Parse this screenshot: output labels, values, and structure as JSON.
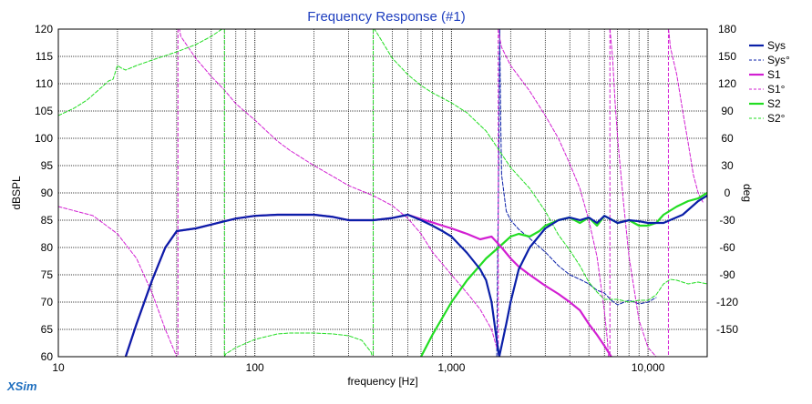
{
  "chart_data": {
    "type": "line",
    "title": "Frequency Response (#1)",
    "xlabel": "frequency [Hz]",
    "ylabel": "dBSPL",
    "y2label": "deg",
    "x_scale": "log",
    "xlim": [
      10,
      20000
    ],
    "ylim": [
      60,
      120
    ],
    "y2lim": [
      -180,
      180
    ],
    "x_ticks": [
      10,
      100,
      1000,
      10000
    ],
    "x_tick_labels": [
      "10",
      "100",
      "1,000",
      "10,000"
    ],
    "y_ticks": [
      60,
      65,
      70,
      75,
      80,
      85,
      90,
      95,
      100,
      105,
      110,
      115,
      120
    ],
    "y2_ticks": [
      -150,
      -120,
      -90,
      -60,
      -30,
      0,
      30,
      60,
      90,
      120,
      150,
      180
    ],
    "grid": true,
    "legend_position": "right",
    "brand": "XSim",
    "colors": {
      "sys": "#0a1fa8",
      "s1": "#d21fd2",
      "s2": "#22dd22",
      "title": "#1f3fbf",
      "brand": "#1f6fbf"
    },
    "series": [
      {
        "name": "Sys",
        "axis": "left",
        "style": "solid",
        "width": 2.2,
        "color": "#0a1fa8",
        "x": [
          22,
          25,
          30,
          35,
          40,
          50,
          60,
          70,
          80,
          100,
          130,
          150,
          200,
          250,
          300,
          400,
          500,
          600,
          700,
          800,
          900,
          1000,
          1200,
          1400,
          1500,
          1600,
          1700,
          1750,
          1800,
          1900,
          2000,
          2200,
          2500,
          3000,
          3500,
          4000,
          4500,
          5000,
          5500,
          6000,
          7000,
          8000,
          9000,
          10000,
          12000,
          15000,
          18000,
          20000
        ],
        "y": [
          60,
          66,
          74,
          80,
          83,
          83.5,
          84.2,
          84.8,
          85.3,
          85.8,
          86,
          86,
          86,
          85.6,
          85,
          85,
          85.4,
          86,
          85,
          84,
          83,
          82,
          79,
          76,
          74,
          70,
          63,
          60,
          62,
          66,
          70,
          76,
          80,
          83.5,
          85,
          85.5,
          85,
          85.5,
          84.5,
          85.8,
          84.5,
          85,
          84.8,
          84.5,
          84.5,
          86,
          88.5,
          89.5
        ]
      },
      {
        "name": "Sys°",
        "axis": "right",
        "style": "dashed",
        "width": 1,
        "color": "#0a1fa8",
        "x": [
          1700,
          1720,
          1745,
          1760,
          1780,
          1800,
          1900,
          2000,
          2200,
          2500,
          3000,
          3500,
          4000,
          4500,
          5000,
          5500,
          6000,
          6500,
          7000,
          8000,
          9000,
          10000,
          11000
        ],
        "y": [
          -180,
          -60,
          60,
          180,
          80,
          20,
          -20,
          -30,
          -40,
          -50,
          -65,
          -80,
          -90,
          -95,
          -100,
          -107,
          -110,
          -118,
          -123,
          -118,
          -122,
          -120,
          -115
        ]
      },
      {
        "name": "S1",
        "axis": "left",
        "style": "solid",
        "width": 2.2,
        "color": "#d21fd2",
        "x": [
          22,
          25,
          30,
          35,
          40,
          50,
          60,
          70,
          80,
          100,
          130,
          150,
          200,
          250,
          300,
          400,
          500,
          600,
          700,
          800,
          900,
          1000,
          1200,
          1400,
          1600,
          1800,
          2000,
          2200,
          2500,
          3000,
          3500,
          4000,
          4500,
          5000,
          5500,
          6000,
          6500
        ],
        "y": [
          60,
          66,
          74,
          80,
          83,
          83.5,
          84.2,
          84.8,
          85.3,
          85.8,
          86,
          86,
          86,
          85.6,
          85,
          85,
          85.4,
          86,
          85.2,
          84.6,
          84,
          83.5,
          82.5,
          81.5,
          82,
          80,
          78,
          76.5,
          75,
          73,
          71.5,
          70,
          68.5,
          66,
          64,
          62,
          60
        ]
      },
      {
        "name": "S1°",
        "axis": "right",
        "style": "dashed",
        "width": 1,
        "color": "#d21fd2",
        "x": [
          10,
          15,
          20,
          25,
          30,
          35,
          40,
          40.6,
          41.3,
          42,
          50,
          60,
          70,
          80,
          100,
          130,
          150,
          200,
          250,
          300,
          400,
          500,
          600,
          700,
          800,
          1000,
          1200,
          1400,
          1600,
          1700,
          1730,
          1760,
          1800,
          2000,
          2500,
          3000,
          3500,
          4000,
          4500,
          5000,
          5500,
          6000,
          6200,
          6300,
          6400,
          6600,
          6800,
          7000,
          7500,
          8000,
          9000,
          10000,
          11000,
          12000,
          12600,
          12700,
          12800,
          13000,
          14000,
          15000,
          16000,
          17000,
          18000,
          19000
        ],
        "y": [
          -15,
          -25,
          -45,
          -72,
          -110,
          -150,
          -180,
          180,
          180,
          172,
          148,
          128,
          113,
          98,
          80,
          57,
          47,
          30,
          18,
          8,
          -3,
          -14,
          -28,
          -45,
          -65,
          -90,
          -110,
          -128,
          -150,
          -170,
          180,
          170,
          160,
          140,
          112,
          85,
          60,
          32,
          5,
          -30,
          -70,
          -130,
          -160,
          -180,
          180,
          150,
          100,
          60,
          -10,
          -70,
          -140,
          -170,
          -180,
          -180,
          -180,
          180,
          175,
          160,
          130,
          90,
          55,
          20,
          0,
          -10
        ]
      },
      {
        "name": "S2",
        "axis": "left",
        "style": "solid",
        "width": 2.2,
        "color": "#22dd22",
        "x": [
          700,
          800,
          1000,
          1200,
          1500,
          1800,
          2000,
          2200,
          2500,
          2800,
          3000,
          3500,
          4000,
          4500,
          5000,
          5500,
          6000,
          7000,
          8000,
          9000,
          10000,
          11000,
          12000,
          14000,
          16000,
          18000,
          20000
        ],
        "y": [
          60,
          64,
          70,
          74,
          78,
          80.5,
          82,
          82.5,
          82,
          83,
          84,
          85,
          85.5,
          84.5,
          85.5,
          84,
          85.8,
          84.5,
          85,
          84,
          84,
          84.5,
          86,
          87.5,
          88.5,
          89,
          90
        ]
      },
      {
        "name": "S2°",
        "axis": "right",
        "style": "dashed",
        "width": 1,
        "color": "#22dd22",
        "x": [
          10,
          12,
          14,
          16,
          18,
          19,
          20,
          21,
          22,
          25,
          30,
          40,
          50,
          60,
          68,
          69,
          70,
          71,
          80,
          100,
          130,
          150,
          200,
          250,
          300,
          350,
          390,
          395,
          400,
          405,
          420,
          500,
          600,
          700,
          800,
          1000,
          1200,
          1500,
          2000,
          2500,
          3000,
          3500,
          4000,
          4500,
          5000,
          5500,
          6000,
          7000,
          8000,
          9000,
          10000,
          11000,
          12000,
          13000,
          14000,
          16000,
          18000,
          20000
        ],
        "y": [
          85,
          93,
          102,
          113,
          123,
          125,
          140,
          137,
          135,
          140,
          146,
          155,
          163,
          172,
          180,
          180,
          -180,
          -177,
          -170,
          -161,
          -155,
          -154,
          -154,
          -155,
          -157,
          -162,
          -175,
          -180,
          180,
          180,
          175,
          148,
          130,
          118,
          110,
          99,
          88,
          68,
          28,
          5,
          -20,
          -46,
          -63,
          -80,
          -98,
          -109,
          -117,
          -117,
          -120,
          -118,
          -118,
          -112,
          -100,
          -95,
          -96,
          -100,
          -98,
          -100
        ]
      }
    ]
  }
}
